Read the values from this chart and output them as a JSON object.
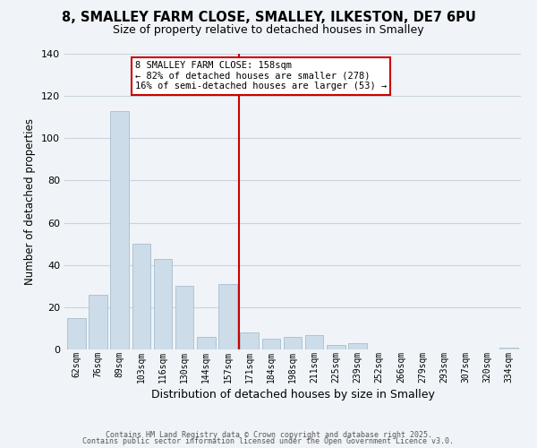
{
  "title": "8, SMALLEY FARM CLOSE, SMALLEY, ILKESTON, DE7 6PU",
  "subtitle": "Size of property relative to detached houses in Smalley",
  "xlabel": "Distribution of detached houses by size in Smalley",
  "ylabel": "Number of detached properties",
  "bar_labels": [
    "62sqm",
    "76sqm",
    "89sqm",
    "103sqm",
    "116sqm",
    "130sqm",
    "144sqm",
    "157sqm",
    "171sqm",
    "184sqm",
    "198sqm",
    "211sqm",
    "225sqm",
    "239sqm",
    "252sqm",
    "266sqm",
    "279sqm",
    "293sqm",
    "307sqm",
    "320sqm",
    "334sqm"
  ],
  "bar_values": [
    15,
    26,
    113,
    50,
    43,
    30,
    6,
    31,
    8,
    5,
    6,
    7,
    2,
    3,
    0,
    0,
    0,
    0,
    0,
    0,
    1
  ],
  "bar_color": "#ccdce8",
  "bar_edgecolor": "#a8bece",
  "vline_x_index": 7,
  "vline_color": "#cc0000",
  "ylim": [
    0,
    140
  ],
  "yticks": [
    0,
    20,
    40,
    60,
    80,
    100,
    120,
    140
  ],
  "annotation_title": "8 SMALLEY FARM CLOSE: 158sqm",
  "annotation_line1": "← 82% of detached houses are smaller (278)",
  "annotation_line2": "16% of semi-detached houses are larger (53) →",
  "annotation_box_facecolor": "#ffffff",
  "annotation_box_edgecolor": "#cc0000",
  "footer1": "Contains HM Land Registry data © Crown copyright and database right 2025.",
  "footer2": "Contains public sector information licensed under the Open Government Licence v3.0.",
  "background_color": "#f0f4f8",
  "grid_color": "#c8d4dc",
  "title_fontsize": 10.5,
  "subtitle_fontsize": 9
}
